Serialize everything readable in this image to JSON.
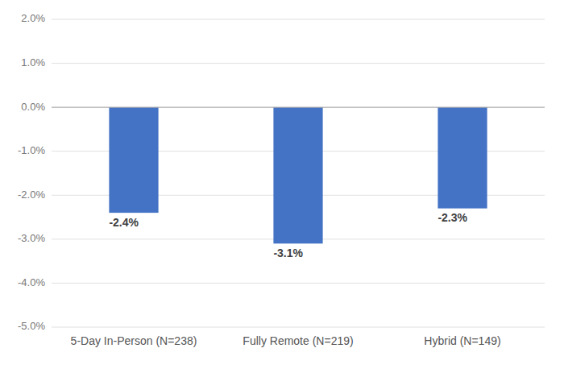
{
  "chart_data": {
    "type": "bar",
    "categories": [
      "5-Day In-Person (N=238)",
      "Fully Remote (N=219)",
      "Hybrid (N=149)"
    ],
    "values": [
      -2.4,
      -3.1,
      -2.3
    ],
    "value_labels": [
      "-2.4%",
      "-3.1%",
      "-2.3%"
    ],
    "data_labels": true,
    "color": "#4472C4",
    "ylim": [
      -5.0,
      2.0
    ],
    "yticks": [
      {
        "value": 2.0,
        "label": "2.0%"
      },
      {
        "value": 1.0,
        "label": "1.0%"
      },
      {
        "value": 0.0,
        "label": "0.0%"
      },
      {
        "value": -1.0,
        "label": "-1.0%"
      },
      {
        "value": -2.0,
        "label": "-2.0%"
      },
      {
        "value": -3.0,
        "label": "-3.0%"
      },
      {
        "value": -4.0,
        "label": "-4.0%"
      },
      {
        "value": -5.0,
        "label": "-5.0%"
      }
    ],
    "grid": true
  }
}
